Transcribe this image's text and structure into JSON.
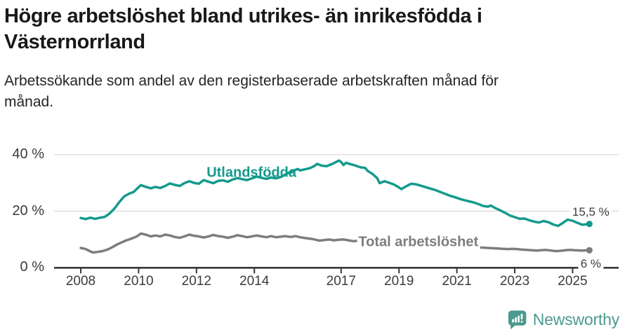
{
  "header": {
    "title_lines": [
      "Högre arbetslöshet bland utrikes- än inrikesfödda i",
      "Västernorrland"
    ],
    "subtitle_lines": [
      "Arbetssökande som andel av den registerbaserade arbetskraften månad för",
      "månad."
    ]
  },
  "colors": {
    "accent": "#149a8d",
    "gray_series": "#7d7d7d",
    "axis": "#383838",
    "grid": "#d8d8d8",
    "tick_text": "#3c3c3c",
    "logo": "#4c9a8f"
  },
  "chart_data": {
    "type": "line",
    "title": "Högre arbetslöshet bland utrikes- än inrikesfödda i Västernorrland",
    "subtitle": "Arbetssökande som andel av den registerbaserade arbetskraften månad för månad.",
    "unit": "%",
    "grid": "horizontal",
    "legend_position": "inline-labels",
    "xlim": [
      2007.1,
      2026.6
    ],
    "ylim": [
      0,
      44
    ],
    "x_ticks": [
      2008,
      2010,
      2012,
      2014,
      2017,
      2019,
      2021,
      2023,
      2025
    ],
    "y_ticks": [
      {
        "value": 0,
        "label": "0 %"
      },
      {
        "value": 20,
        "label": "20 %"
      },
      {
        "value": 40,
        "label": "40 %"
      }
    ],
    "series": [
      {
        "id": "utlandsfodda",
        "name": "Utlandsfödda",
        "color": "#149a8d",
        "end_label": "15,5 %",
        "last_value": 15.5,
        "points": [
          [
            2008.0,
            17.6
          ],
          [
            2008.17,
            17.2
          ],
          [
            2008.33,
            17.7
          ],
          [
            2008.5,
            17.3
          ],
          [
            2008.67,
            17.7
          ],
          [
            2008.83,
            18.0
          ],
          [
            2009.0,
            19.2
          ],
          [
            2009.17,
            21.0
          ],
          [
            2009.33,
            23.2
          ],
          [
            2009.5,
            25.2
          ],
          [
            2009.67,
            26.2
          ],
          [
            2009.83,
            26.8
          ],
          [
            2010.0,
            28.5
          ],
          [
            2010.08,
            29.2
          ],
          [
            2010.25,
            28.6
          ],
          [
            2010.42,
            28.1
          ],
          [
            2010.58,
            28.6
          ],
          [
            2010.75,
            28.2
          ],
          [
            2010.92,
            28.9
          ],
          [
            2011.08,
            29.8
          ],
          [
            2011.25,
            29.3
          ],
          [
            2011.42,
            28.9
          ],
          [
            2011.58,
            29.9
          ],
          [
            2011.75,
            30.6
          ],
          [
            2011.92,
            30.0
          ],
          [
            2012.08,
            29.7
          ],
          [
            2012.25,
            31.0
          ],
          [
            2012.42,
            30.4
          ],
          [
            2012.58,
            29.9
          ],
          [
            2012.75,
            30.7
          ],
          [
            2012.92,
            30.9
          ],
          [
            2013.08,
            30.4
          ],
          [
            2013.25,
            31.2
          ],
          [
            2013.42,
            31.7
          ],
          [
            2013.58,
            31.3
          ],
          [
            2013.75,
            31.0
          ],
          [
            2013.92,
            31.6
          ],
          [
            2014.08,
            32.2
          ],
          [
            2014.25,
            31.8
          ],
          [
            2014.42,
            31.4
          ],
          [
            2014.58,
            31.9
          ],
          [
            2014.75,
            31.6
          ],
          [
            2014.92,
            32.1
          ],
          [
            2015.08,
            33.0
          ],
          [
            2015.25,
            33.9
          ],
          [
            2015.42,
            34.6
          ],
          [
            2015.5,
            34.9
          ],
          [
            2015.58,
            34.4
          ],
          [
            2015.75,
            34.8
          ],
          [
            2015.92,
            35.2
          ],
          [
            2016.08,
            36.0
          ],
          [
            2016.17,
            36.7
          ],
          [
            2016.33,
            36.1
          ],
          [
            2016.5,
            35.9
          ],
          [
            2016.67,
            36.6
          ],
          [
            2016.83,
            37.4
          ],
          [
            2016.92,
            37.9
          ],
          [
            2017.0,
            37.4
          ],
          [
            2017.08,
            36.3
          ],
          [
            2017.17,
            37.1
          ],
          [
            2017.33,
            36.6
          ],
          [
            2017.5,
            36.1
          ],
          [
            2017.67,
            35.5
          ],
          [
            2017.83,
            35.3
          ],
          [
            2017.92,
            34.2
          ],
          [
            2018.08,
            33.2
          ],
          [
            2018.25,
            31.6
          ],
          [
            2018.33,
            29.9
          ],
          [
            2018.5,
            30.6
          ],
          [
            2018.67,
            30.0
          ],
          [
            2018.83,
            29.4
          ],
          [
            2019.0,
            28.4
          ],
          [
            2019.08,
            27.8
          ],
          [
            2019.25,
            28.8
          ],
          [
            2019.42,
            29.7
          ],
          [
            2019.58,
            29.5
          ],
          [
            2019.75,
            29.0
          ],
          [
            2019.92,
            28.5
          ],
          [
            2020.08,
            28.0
          ],
          [
            2020.25,
            27.5
          ],
          [
            2020.42,
            26.8
          ],
          [
            2020.58,
            26.2
          ],
          [
            2020.75,
            25.5
          ],
          [
            2020.92,
            25.0
          ],
          [
            2021.08,
            24.4
          ],
          [
            2021.25,
            23.9
          ],
          [
            2021.42,
            23.5
          ],
          [
            2021.58,
            23.1
          ],
          [
            2021.75,
            22.5
          ],
          [
            2021.92,
            21.8
          ],
          [
            2022.08,
            21.6
          ],
          [
            2022.17,
            22.0
          ],
          [
            2022.33,
            21.1
          ],
          [
            2022.5,
            20.3
          ],
          [
            2022.67,
            19.4
          ],
          [
            2022.83,
            18.5
          ],
          [
            2023.0,
            17.9
          ],
          [
            2023.17,
            17.3
          ],
          [
            2023.33,
            17.4
          ],
          [
            2023.5,
            16.8
          ],
          [
            2023.67,
            16.3
          ],
          [
            2023.83,
            16.0
          ],
          [
            2024.0,
            16.5
          ],
          [
            2024.17,
            16.1
          ],
          [
            2024.33,
            15.3
          ],
          [
            2024.5,
            14.8
          ],
          [
            2024.67,
            15.9
          ],
          [
            2024.83,
            17.0
          ],
          [
            2025.0,
            16.6
          ],
          [
            2025.17,
            15.9
          ],
          [
            2025.33,
            15.2
          ],
          [
            2025.58,
            15.5
          ]
        ]
      },
      {
        "id": "total-arbetsloshet",
        "name": "Total arbetslöshet",
        "color": "#7d7d7d",
        "end_label": "6 %",
        "last_value": 6,
        "points": [
          [
            2008.0,
            7.0
          ],
          [
            2008.17,
            6.6
          ],
          [
            2008.33,
            5.8
          ],
          [
            2008.42,
            5.4
          ],
          [
            2008.58,
            5.6
          ],
          [
            2008.75,
            5.9
          ],
          [
            2008.92,
            6.4
          ],
          [
            2009.08,
            7.2
          ],
          [
            2009.25,
            8.2
          ],
          [
            2009.42,
            9.0
          ],
          [
            2009.58,
            9.7
          ],
          [
            2009.75,
            10.3
          ],
          [
            2009.92,
            11.0
          ],
          [
            2010.08,
            12.1
          ],
          [
            2010.25,
            11.7
          ],
          [
            2010.42,
            11.1
          ],
          [
            2010.58,
            11.4
          ],
          [
            2010.75,
            11.1
          ],
          [
            2010.92,
            11.7
          ],
          [
            2011.08,
            11.4
          ],
          [
            2011.25,
            10.9
          ],
          [
            2011.42,
            10.6
          ],
          [
            2011.58,
            11.1
          ],
          [
            2011.75,
            11.7
          ],
          [
            2011.92,
            11.3
          ],
          [
            2012.08,
            11.1
          ],
          [
            2012.25,
            10.7
          ],
          [
            2012.42,
            11.1
          ],
          [
            2012.58,
            11.6
          ],
          [
            2012.75,
            11.2
          ],
          [
            2012.92,
            11.0
          ],
          [
            2013.08,
            10.6
          ],
          [
            2013.25,
            11.0
          ],
          [
            2013.42,
            11.5
          ],
          [
            2013.58,
            11.2
          ],
          [
            2013.75,
            10.8
          ],
          [
            2013.92,
            11.1
          ],
          [
            2014.08,
            11.4
          ],
          [
            2014.25,
            11.1
          ],
          [
            2014.42,
            10.8
          ],
          [
            2014.58,
            11.2
          ],
          [
            2014.75,
            10.8
          ],
          [
            2014.92,
            11.0
          ],
          [
            2015.08,
            11.2
          ],
          [
            2015.25,
            10.9
          ],
          [
            2015.42,
            11.2
          ],
          [
            2015.58,
            10.8
          ],
          [
            2015.75,
            10.5
          ],
          [
            2015.92,
            10.3
          ],
          [
            2016.08,
            10.0
          ],
          [
            2016.25,
            9.6
          ],
          [
            2016.42,
            9.8
          ],
          [
            2016.58,
            10.0
          ],
          [
            2016.75,
            9.7
          ],
          [
            2016.92,
            9.9
          ],
          [
            2017.08,
            10.0
          ],
          [
            2017.25,
            9.7
          ],
          [
            2017.42,
            9.4
          ],
          [
            2017.58,
            9.5
          ],
          [
            2017.75,
            9.2
          ],
          [
            2017.92,
            9.0
          ],
          [
            2018.08,
            8.8
          ],
          [
            2018.25,
            8.6
          ],
          [
            2018.42,
            8.7
          ],
          [
            2018.58,
            8.5
          ],
          [
            2018.75,
            8.3
          ],
          [
            2018.92,
            8.2
          ],
          [
            2019.08,
            8.0
          ],
          [
            2019.25,
            8.2
          ],
          [
            2019.42,
            8.4
          ],
          [
            2019.58,
            8.2
          ],
          [
            2019.75,
            8.0
          ],
          [
            2019.92,
            7.9
          ],
          [
            2020.08,
            8.1
          ],
          [
            2020.25,
            8.4
          ],
          [
            2020.42,
            8.6
          ],
          [
            2020.58,
            8.4
          ],
          [
            2020.75,
            8.2
          ],
          [
            2020.92,
            8.1
          ],
          [
            2021.08,
            7.9
          ],
          [
            2021.25,
            7.7
          ],
          [
            2021.42,
            7.6
          ],
          [
            2021.58,
            7.4
          ],
          [
            2021.75,
            7.2
          ],
          [
            2021.92,
            7.1
          ],
          [
            2022.08,
            7.0
          ],
          [
            2022.25,
            6.9
          ],
          [
            2022.42,
            6.8
          ],
          [
            2022.58,
            6.7
          ],
          [
            2022.75,
            6.6
          ],
          [
            2022.92,
            6.7
          ],
          [
            2023.08,
            6.6
          ],
          [
            2023.25,
            6.4
          ],
          [
            2023.42,
            6.3
          ],
          [
            2023.58,
            6.2
          ],
          [
            2023.75,
            6.1
          ],
          [
            2023.92,
            6.2
          ],
          [
            2024.08,
            6.3
          ],
          [
            2024.25,
            6.1
          ],
          [
            2024.42,
            5.9
          ],
          [
            2024.58,
            6.0
          ],
          [
            2024.75,
            6.2
          ],
          [
            2024.92,
            6.3
          ],
          [
            2025.08,
            6.2
          ],
          [
            2025.33,
            6.1
          ],
          [
            2025.58,
            6.2
          ]
        ]
      }
    ],
    "annotations": [
      {
        "id": "utlandsfodda-label",
        "text": "Utlandsfödda",
        "x": 2013.9,
        "y": 33.4,
        "cls": "ann-series",
        "color": "#149a8d"
      },
      {
        "id": "total-arbetsloshet-label",
        "text": "Total arbetslöshet",
        "x": 2019.67,
        "y": 9.0,
        "cls": "ann-series ann-on-line",
        "color": "#7d7d7d"
      },
      {
        "id": "end-value-utlandsfodda",
        "text": "15,5 %",
        "x": 2025.63,
        "y": 19.7,
        "cls": "ann-value"
      },
      {
        "id": "end-value-total",
        "text": "6 %",
        "x": 2025.63,
        "y": 1.3,
        "cls": "ann-value"
      }
    ]
  },
  "footer": {
    "brand": "Newsworthy"
  }
}
